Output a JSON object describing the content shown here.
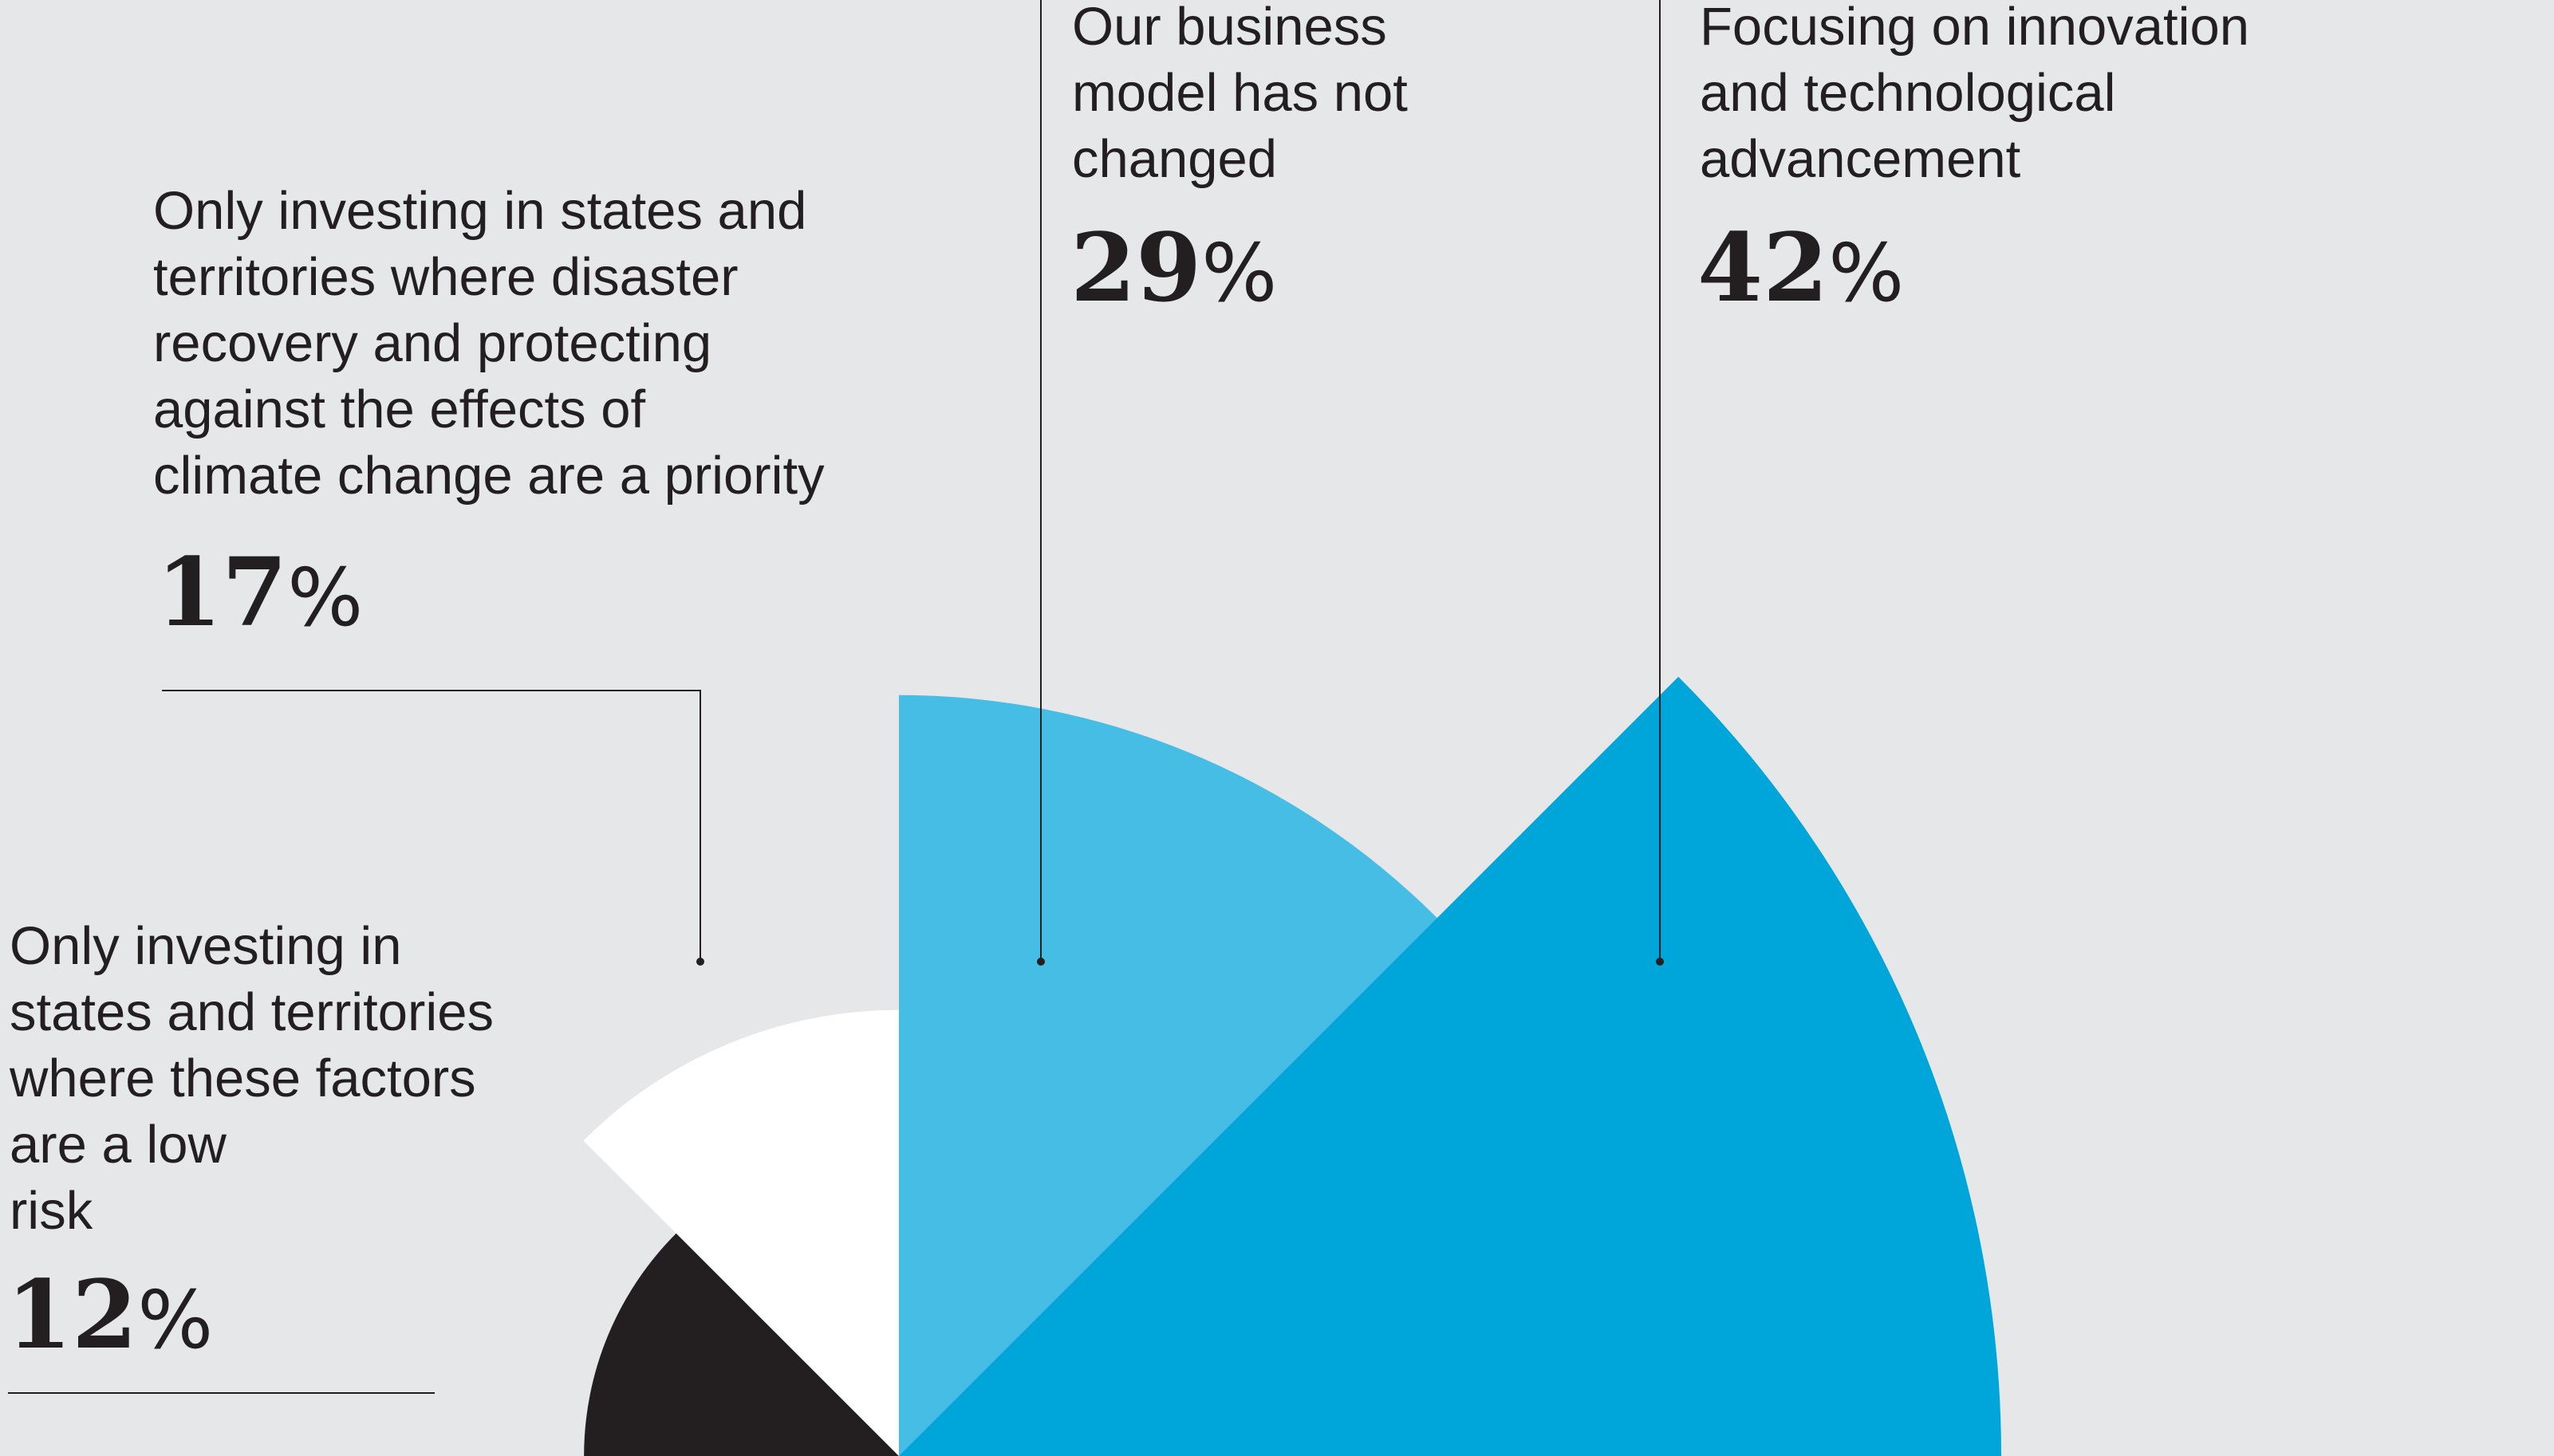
{
  "chart_data": {
    "type": "pie",
    "series": [
      {
        "label": "Only investing in states and territories where these factors are a low risk",
        "value": 12,
        "value_label": "12",
        "unit": "%",
        "color": "#231f20"
      },
      {
        "label": "Only investing in states and territories where disaster recovery and protecting against the effects of climate change are a priority",
        "value": 17,
        "value_label": "17",
        "unit": "%",
        "color": "#ffffff"
      },
      {
        "label": "Our business model has not changed",
        "value": 29,
        "value_label": "29",
        "unit": "%",
        "color": "#45bde5"
      },
      {
        "label": "Focusing on innovation and technological advancement",
        "value": 42,
        "value_label": "42",
        "unit": "%",
        "color": "#00a5d9"
      }
    ]
  }
}
